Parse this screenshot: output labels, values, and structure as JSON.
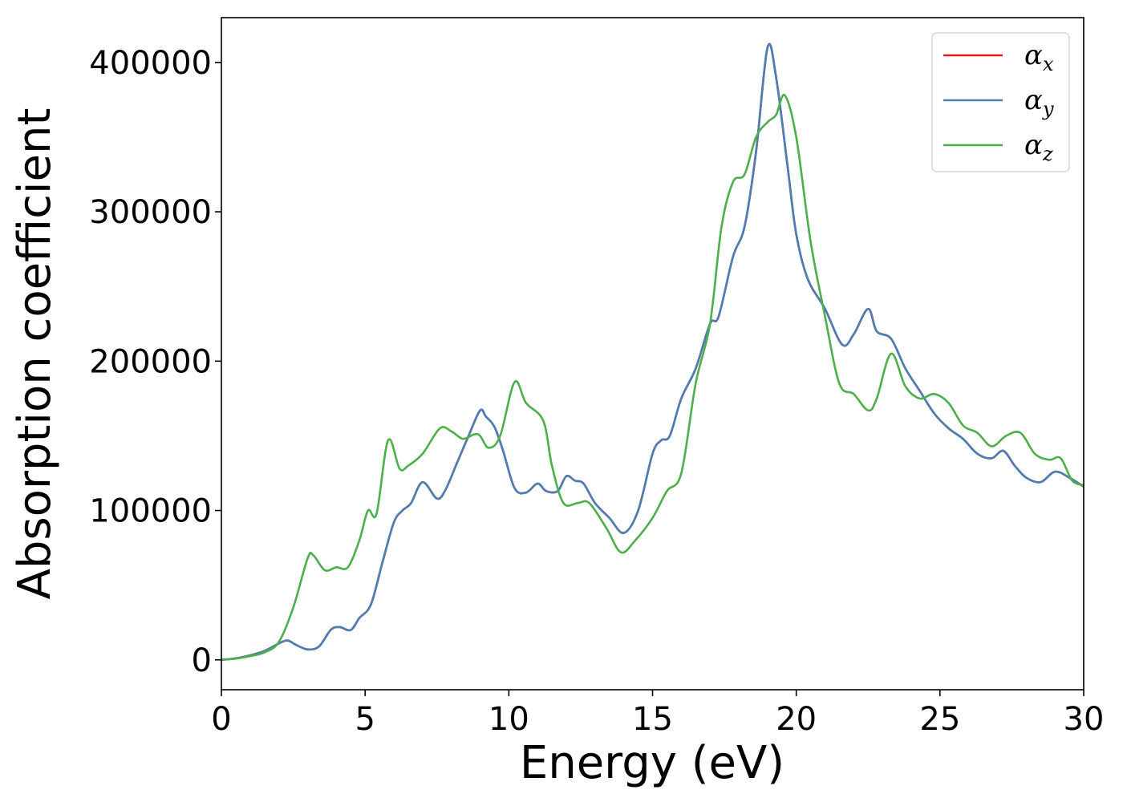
{
  "chart_data": {
    "type": "line",
    "title": "",
    "xlabel": "Energy (eV)",
    "ylabel": "Absorption coefficient",
    "xlim": [
      0,
      30
    ],
    "ylim": [
      -20000,
      430000
    ],
    "xticks": [
      0,
      5,
      10,
      15,
      20,
      25,
      30
    ],
    "xtick_labels": [
      "0",
      "5",
      "10",
      "15",
      "20",
      "25",
      "30"
    ],
    "yticks": [
      0,
      100000,
      200000,
      300000,
      400000
    ],
    "ytick_labels": [
      "0",
      "100000",
      "200000",
      "300000",
      "400000"
    ],
    "grid": false,
    "legend_position": "top-right",
    "series": [
      {
        "name": "αx",
        "symbol": "α",
        "subscript": "x",
        "color": "#e41a1c",
        "x": [
          0,
          0.5,
          1.0,
          1.5,
          2.0,
          2.3,
          2.6,
          3.0,
          3.4,
          3.8,
          4.1,
          4.5,
          4.8,
          5.2,
          5.6,
          6.0,
          6.3,
          6.6,
          7.0,
          7.5,
          7.8,
          8.2,
          8.6,
          9.0,
          9.2,
          9.5,
          9.8,
          10.2,
          10.6,
          11.0,
          11.3,
          11.7,
          12.0,
          12.3,
          12.6,
          13.0,
          13.5,
          14.0,
          14.5,
          15.0,
          15.3,
          15.6,
          16.0,
          16.5,
          17.0,
          17.3,
          17.8,
          18.2,
          18.6,
          19.0,
          19.3,
          19.7,
          20.0,
          20.4,
          21.0,
          21.6,
          22.0,
          22.5,
          22.8,
          23.3,
          23.8,
          24.3,
          24.8,
          25.3,
          25.8,
          26.3,
          26.8,
          27.2,
          27.6,
          28.0,
          28.5,
          29.0,
          29.5,
          30.0
        ],
        "y": [
          0,
          1000,
          3000,
          6000,
          11000,
          13000,
          10000,
          7000,
          9000,
          20000,
          22000,
          20000,
          28000,
          37000,
          65000,
          92000,
          100000,
          105000,
          119000,
          108000,
          114000,
          132000,
          150000,
          167000,
          163000,
          156000,
          140000,
          115000,
          112000,
          118000,
          113000,
          113000,
          123000,
          120000,
          118000,
          105000,
          95000,
          85000,
          100000,
          138000,
          147000,
          150000,
          175000,
          195000,
          225000,
          230000,
          270000,
          290000,
          340000,
          410000,
          390000,
          330000,
          285000,
          255000,
          235000,
          211000,
          218000,
          235000,
          220000,
          215000,
          195000,
          180000,
          165000,
          155000,
          148000,
          138000,
          135000,
          140000,
          130000,
          122000,
          119000,
          126000,
          122000,
          116000
        ]
      },
      {
        "name": "αy",
        "symbol": "α",
        "subscript": "y",
        "color": "#4a7eb5",
        "x": [
          0,
          0.5,
          1.0,
          1.5,
          2.0,
          2.3,
          2.6,
          3.0,
          3.4,
          3.8,
          4.1,
          4.5,
          4.8,
          5.2,
          5.6,
          6.0,
          6.3,
          6.6,
          7.0,
          7.5,
          7.8,
          8.2,
          8.6,
          9.0,
          9.2,
          9.5,
          9.8,
          10.2,
          10.6,
          11.0,
          11.3,
          11.7,
          12.0,
          12.3,
          12.6,
          13.0,
          13.5,
          14.0,
          14.5,
          15.0,
          15.3,
          15.6,
          16.0,
          16.5,
          17.0,
          17.3,
          17.8,
          18.2,
          18.6,
          19.0,
          19.3,
          19.7,
          20.0,
          20.4,
          21.0,
          21.6,
          22.0,
          22.5,
          22.8,
          23.3,
          23.8,
          24.3,
          24.8,
          25.3,
          25.8,
          26.3,
          26.8,
          27.2,
          27.6,
          28.0,
          28.5,
          29.0,
          29.5,
          30.0
        ],
        "y": [
          0,
          1000,
          3000,
          6000,
          11000,
          13000,
          10000,
          7000,
          9000,
          20000,
          22000,
          20000,
          28000,
          37000,
          65000,
          92000,
          100000,
          105000,
          119000,
          108000,
          114000,
          132000,
          150000,
          167000,
          163000,
          156000,
          140000,
          115000,
          112000,
          118000,
          113000,
          113000,
          123000,
          120000,
          118000,
          105000,
          95000,
          85000,
          100000,
          138000,
          147000,
          150000,
          175000,
          195000,
          225000,
          230000,
          270000,
          290000,
          340000,
          410000,
          390000,
          330000,
          285000,
          255000,
          235000,
          211000,
          218000,
          235000,
          220000,
          215000,
          195000,
          180000,
          165000,
          155000,
          148000,
          138000,
          135000,
          140000,
          130000,
          122000,
          119000,
          126000,
          122000,
          116000
        ]
      },
      {
        "name": "αz",
        "symbol": "α",
        "subscript": "z",
        "color": "#4daf4a",
        "x": [
          0,
          0.5,
          1.0,
          1.5,
          2.0,
          2.5,
          3.0,
          3.2,
          3.6,
          4.0,
          4.4,
          4.8,
          5.1,
          5.4,
          5.8,
          6.2,
          6.5,
          7.0,
          7.6,
          8.0,
          8.4,
          8.8,
          9.0,
          9.3,
          9.7,
          10.2,
          10.6,
          11.2,
          11.5,
          11.9,
          12.4,
          12.8,
          13.4,
          13.9,
          14.4,
          15.0,
          15.5,
          16.0,
          16.5,
          17.0,
          17.4,
          17.8,
          18.2,
          18.6,
          19.0,
          19.3,
          19.6,
          20.0,
          20.5,
          21.0,
          21.5,
          22.0,
          22.5,
          22.8,
          23.3,
          23.8,
          24.3,
          24.8,
          25.3,
          25.8,
          26.3,
          26.8,
          27.3,
          27.8,
          28.3,
          28.8,
          29.2,
          29.6,
          30.0
        ],
        "y": [
          0,
          800,
          2500,
          5000,
          12000,
          35000,
          68000,
          70000,
          60000,
          62000,
          62000,
          80000,
          100000,
          98000,
          147000,
          128000,
          130000,
          138000,
          155000,
          153000,
          148000,
          151000,
          150000,
          142000,
          150000,
          186000,
          172000,
          160000,
          130000,
          105000,
          105000,
          105000,
          88000,
          72000,
          80000,
          95000,
          113000,
          125000,
          185000,
          225000,
          290000,
          320000,
          325000,
          350000,
          360000,
          365000,
          378000,
          350000,
          280000,
          230000,
          185000,
          178000,
          167000,
          175000,
          205000,
          183000,
          175000,
          178000,
          172000,
          157000,
          152000,
          143000,
          150000,
          152000,
          138000,
          134000,
          135000,
          120000,
          117000
        ]
      }
    ]
  }
}
